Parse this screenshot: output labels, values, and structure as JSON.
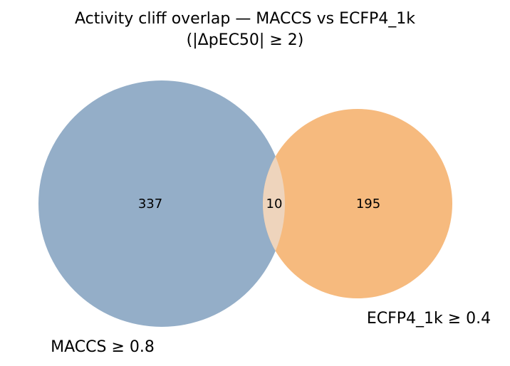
{
  "figure": {
    "title_line1": "Activity cliff overlap — MACCS vs ECFP4_1k",
    "title_line2": "(|ΔpEC50| ≥ 2)"
  },
  "venn": {
    "sets": [
      {
        "label": "MACCS ≥ 0.8",
        "only_count": "337",
        "color": "#94aec8"
      },
      {
        "label": "ECFP4_1k ≥ 0.4",
        "only_count": "195",
        "color": "#f6ba7e"
      }
    ],
    "intersection": {
      "count": "10",
      "color": "#eed4bc"
    }
  }
}
